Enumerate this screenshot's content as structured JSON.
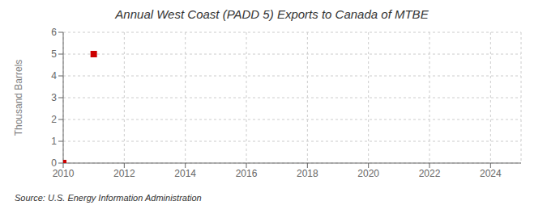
{
  "chart_data": {
    "type": "scatter",
    "title": "Annual West Coast (PADD 5) Exports to Canada of MTBE",
    "ylabel": "Thousand Barrels",
    "annotations": [
      "Source: U.S. Energy Information Administration"
    ],
    "x": [
      2010,
      2011
    ],
    "values": [
      0,
      5
    ],
    "color": "#cc0000",
    "marker": "square",
    "xlim": [
      2010,
      2025
    ],
    "ylim": [
      0,
      6
    ],
    "xticks": [
      2010,
      2012,
      2014,
      2016,
      2018,
      2020,
      2022,
      2024
    ],
    "yticks": [
      0,
      1,
      2,
      3,
      4,
      5,
      6
    ],
    "grid": true
  }
}
